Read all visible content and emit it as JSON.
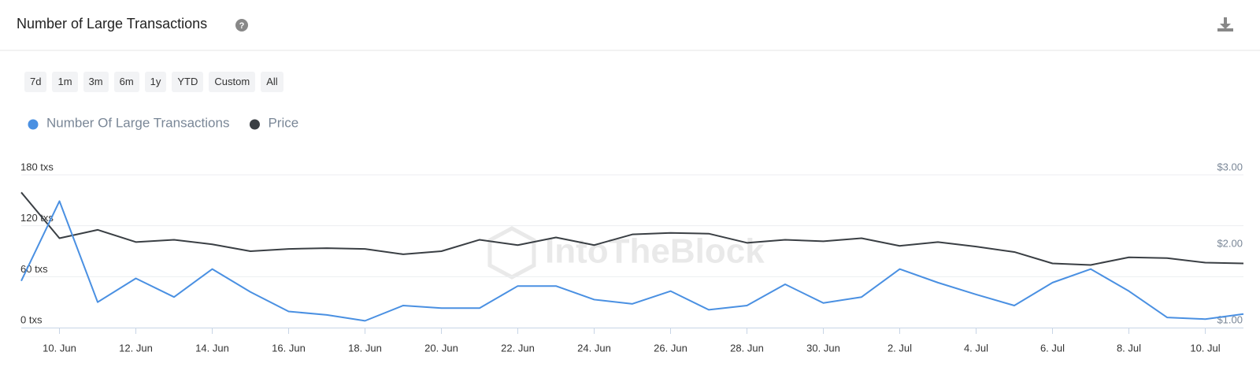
{
  "controls": [
    "7d",
    "1m",
    "3m",
    "6m",
    "1y",
    "YTD",
    "Custom",
    "All"
  ],
  "watermark": "IntoTheBlock",
  "chart_data": {
    "type": "line",
    "title": "Number of Large Transactions",
    "categories": [
      null,
      "10. Jun",
      null,
      "12. Jun",
      null,
      "14. Jun",
      null,
      "16. Jun",
      null,
      "18. Jun",
      null,
      "20. Jun",
      null,
      "22. Jun",
      null,
      "24. Jun",
      null,
      "26. Jun",
      null,
      "28. Jun",
      null,
      "30. Jun",
      null,
      "2. Jul",
      null,
      "4. Jul",
      null,
      "6. Jul",
      null,
      "8. Jul",
      null,
      "10. Jul",
      null
    ],
    "series": [
      {
        "name": "Number Of Large Transactions",
        "color": "#4a90e2",
        "axis": "y",
        "values": [
          55,
          149,
          30,
          58,
          36,
          69,
          42,
          19,
          15,
          8,
          26,
          23,
          23,
          49,
          49,
          33,
          28,
          43,
          21,
          26,
          51,
          29,
          36,
          69,
          53,
          39,
          26,
          53,
          69,
          43,
          12,
          10,
          16
        ]
      },
      {
        "name": "Price",
        "color": "#3a3f44",
        "axis": "y2",
        "values": [
          2.77,
          2.17,
          2.28,
          2.12,
          2.15,
          2.09,
          2.0,
          2.03,
          2.04,
          2.03,
          1.96,
          2.0,
          2.15,
          2.08,
          2.18,
          2.08,
          2.22,
          2.24,
          2.23,
          2.11,
          2.15,
          2.13,
          2.17,
          2.07,
          2.12,
          2.06,
          1.99,
          1.84,
          1.82,
          1.92,
          1.91,
          1.85,
          1.84
        ]
      }
    ],
    "ylim": [
      0,
      180
    ],
    "yticks": [
      {
        "value": 0,
        "label": "0 txs"
      },
      {
        "value": 60,
        "label": "60 txs"
      },
      {
        "value": 120,
        "label": "120 txs"
      },
      {
        "value": 180,
        "label": "180 txs"
      }
    ],
    "y2lim": [
      1,
      3
    ],
    "y2ticks": [
      {
        "value": 1,
        "label": "$1.00"
      },
      {
        "value": 2,
        "label": "$2.00"
      },
      {
        "value": 3,
        "label": "$3.00"
      }
    ],
    "grid": true
  }
}
